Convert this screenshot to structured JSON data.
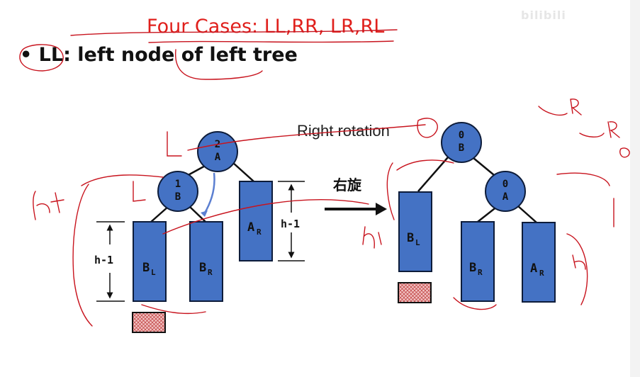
{
  "title": "Four Cases: LL,RR, LR,RL",
  "bullet": {
    "mark": "•",
    "text": "LL: left node of left tree"
  },
  "watermark": "bilibili",
  "rotation_label": "Right rotation",
  "rotation_label_cn": "右旋",
  "left_tree": {
    "root": {
      "balance": "2",
      "name": "A"
    },
    "child": {
      "balance": "1",
      "name": "B"
    },
    "subtrees": [
      {
        "main": "B",
        "sub": "L"
      },
      {
        "main": "B",
        "sub": "R"
      },
      {
        "main": "A",
        "sub": "R"
      }
    ],
    "height_labels": [
      "h-1",
      "h-1"
    ]
  },
  "right_tree": {
    "root": {
      "balance": "0",
      "name": "B"
    },
    "child": {
      "balance": "0",
      "name": "A"
    },
    "subtrees": [
      {
        "main": "B",
        "sub": "L"
      },
      {
        "main": "B",
        "sub": "R"
      },
      {
        "main": "A",
        "sub": "R"
      }
    ]
  },
  "colors": {
    "node_fill": "#4472c4",
    "node_stroke": "#0d1c3a",
    "title": "#e0201c",
    "annotation": "#c8141e",
    "hatch": "#e8a0a0"
  }
}
